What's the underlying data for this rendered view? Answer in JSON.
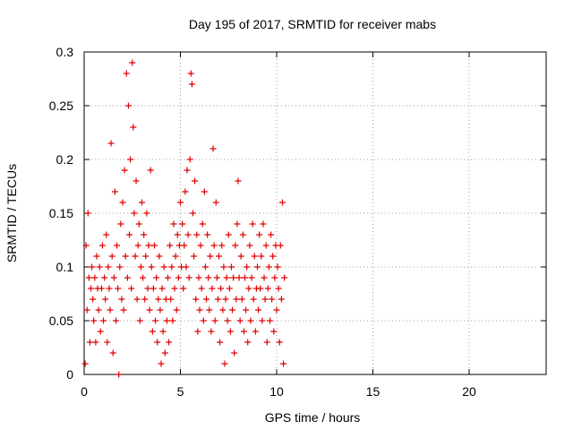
{
  "chart_data": {
    "type": "scatter",
    "title": "Day 195 of 2017, SRMTID for receiver mabs",
    "xlabel": "GPS time / hours",
    "ylabel": "SRMTID / TECUs",
    "xlim": [
      0,
      24
    ],
    "ylim": [
      0,
      0.3
    ],
    "xticks": [
      0,
      5,
      10,
      15,
      20
    ],
    "xtick_labels": [
      "0",
      "5",
      "10",
      "15",
      "20"
    ],
    "yticks": [
      0,
      0.05,
      0.1,
      0.15,
      0.2,
      0.25,
      0.3
    ],
    "ytick_labels": [
      "0",
      "0.05",
      "0.1",
      "0.15",
      "0.2",
      "0.25",
      "0.3"
    ],
    "grid": true,
    "marker": "+",
    "series": [
      {
        "name": "SRMTID",
        "color": "#e00000",
        "points": [
          [
            0.05,
            0.01
          ],
          [
            0.1,
            0.12
          ],
          [
            0.15,
            0.06
          ],
          [
            0.2,
            0.15
          ],
          [
            0.25,
            0.09
          ],
          [
            0.3,
            0.03
          ],
          [
            0.35,
            0.08
          ],
          [
            0.4,
            0.1
          ],
          [
            0.45,
            0.07
          ],
          [
            0.5,
            0.05
          ],
          [
            0.55,
            0.09
          ],
          [
            0.6,
            0.03
          ],
          [
            0.65,
            0.11
          ],
          [
            0.7,
            0.08
          ],
          [
            0.75,
            0.06
          ],
          [
            0.8,
            0.1
          ],
          [
            0.85,
            0.04
          ],
          [
            0.9,
            0.08
          ],
          [
            0.95,
            0.12
          ],
          [
            1.0,
            0.05
          ],
          [
            1.05,
            0.09
          ],
          [
            1.1,
            0.07
          ],
          [
            1.15,
            0.13
          ],
          [
            1.2,
            0.03
          ],
          [
            1.25,
            0.1
          ],
          [
            1.3,
            0.08
          ],
          [
            1.35,
            0.06
          ],
          [
            1.4,
            0.215
          ],
          [
            1.45,
            0.11
          ],
          [
            1.5,
            0.02
          ],
          [
            1.55,
            0.09
          ],
          [
            1.6,
            0.17
          ],
          [
            1.65,
            0.05
          ],
          [
            1.7,
            0.12
          ],
          [
            1.75,
            0.08
          ],
          [
            1.8,
            0.0
          ],
          [
            1.85,
            0.1
          ],
          [
            1.9,
            0.14
          ],
          [
            1.95,
            0.07
          ],
          [
            2.0,
            0.16
          ],
          [
            2.05,
            0.06
          ],
          [
            2.1,
            0.19
          ],
          [
            2.15,
            0.11
          ],
          [
            2.2,
            0.28
          ],
          [
            2.25,
            0.09
          ],
          [
            2.3,
            0.25
          ],
          [
            2.35,
            0.13
          ],
          [
            2.4,
            0.2
          ],
          [
            2.45,
            0.08
          ],
          [
            2.5,
            0.29
          ],
          [
            2.55,
            0.23
          ],
          [
            2.6,
            0.15
          ],
          [
            2.65,
            0.11
          ],
          [
            2.7,
            0.18
          ],
          [
            2.75,
            0.07
          ],
          [
            2.8,
            0.12
          ],
          [
            2.85,
            0.14
          ],
          [
            2.9,
            0.05
          ],
          [
            2.95,
            0.1
          ],
          [
            3.0,
            0.16
          ],
          [
            3.05,
            0.09
          ],
          [
            3.1,
            0.13
          ],
          [
            3.15,
            0.07
          ],
          [
            3.2,
            0.11
          ],
          [
            3.25,
            0.15
          ],
          [
            3.3,
            0.08
          ],
          [
            3.35,
            0.12
          ],
          [
            3.4,
            0.06
          ],
          [
            3.45,
            0.19
          ],
          [
            3.5,
            0.1
          ],
          [
            3.55,
            0.04
          ],
          [
            3.6,
            0.08
          ],
          [
            3.65,
            0.12
          ],
          [
            3.7,
            0.05
          ],
          [
            3.75,
            0.09
          ],
          [
            3.8,
            0.03
          ],
          [
            3.85,
            0.07
          ],
          [
            3.9,
            0.11
          ],
          [
            3.95,
            0.06
          ],
          [
            4.0,
            0.01
          ],
          [
            4.05,
            0.08
          ],
          [
            4.1,
            0.04
          ],
          [
            4.15,
            0.1
          ],
          [
            4.2,
            0.02
          ],
          [
            4.25,
            0.07
          ],
          [
            4.3,
            0.05
          ],
          [
            4.35,
            0.09
          ],
          [
            4.4,
            0.03
          ],
          [
            4.45,
            0.12
          ],
          [
            4.5,
            0.07
          ],
          [
            4.55,
            0.1
          ],
          [
            4.6,
            0.05
          ],
          [
            4.65,
            0.14
          ],
          [
            4.7,
            0.08
          ],
          [
            4.75,
            0.11
          ],
          [
            4.8,
            0.06
          ],
          [
            4.85,
            0.13
          ],
          [
            4.9,
            0.09
          ],
          [
            4.95,
            0.12
          ],
          [
            5.0,
            0.16
          ],
          [
            5.05,
            0.1
          ],
          [
            5.1,
            0.14
          ],
          [
            5.15,
            0.08
          ],
          [
            5.2,
            0.12
          ],
          [
            5.25,
            0.17
          ],
          [
            5.3,
            0.1
          ],
          [
            5.35,
            0.19
          ],
          [
            5.4,
            0.13
          ],
          [
            5.45,
            0.09
          ],
          [
            5.5,
            0.2
          ],
          [
            5.55,
            0.28
          ],
          [
            5.6,
            0.27
          ],
          [
            5.65,
            0.15
          ],
          [
            5.7,
            0.11
          ],
          [
            5.75,
            0.18
          ],
          [
            5.8,
            0.07
          ],
          [
            5.85,
            0.13
          ],
          [
            5.9,
            0.04
          ],
          [
            5.95,
            0.09
          ],
          [
            6.0,
            0.06
          ],
          [
            6.05,
            0.12
          ],
          [
            6.1,
            0.08
          ],
          [
            6.15,
            0.14
          ],
          [
            6.2,
            0.05
          ],
          [
            6.25,
            0.17
          ],
          [
            6.3,
            0.1
          ],
          [
            6.35,
            0.07
          ],
          [
            6.4,
            0.13
          ],
          [
            6.45,
            0.09
          ],
          [
            6.5,
            0.06
          ],
          [
            6.55,
            0.11
          ],
          [
            6.6,
            0.04
          ],
          [
            6.65,
            0.08
          ],
          [
            6.7,
            0.21
          ],
          [
            6.75,
            0.12
          ],
          [
            6.8,
            0.05
          ],
          [
            6.85,
            0.16
          ],
          [
            6.9,
            0.09
          ],
          [
            6.95,
            0.07
          ],
          [
            7.0,
            0.11
          ],
          [
            7.05,
            0.03
          ],
          [
            7.1,
            0.08
          ],
          [
            7.15,
            0.12
          ],
          [
            7.2,
            0.06
          ],
          [
            7.25,
            0.1
          ],
          [
            7.3,
            0.01
          ],
          [
            7.35,
            0.07
          ],
          [
            7.4,
            0.09
          ],
          [
            7.45,
            0.05
          ],
          [
            7.5,
            0.13
          ],
          [
            7.55,
            0.08
          ],
          [
            7.6,
            0.04
          ],
          [
            7.65,
            0.1
          ],
          [
            7.7,
            0.06
          ],
          [
            7.75,
            0.09
          ],
          [
            7.8,
            0.02
          ],
          [
            7.85,
            0.12
          ],
          [
            7.9,
            0.07
          ],
          [
            7.95,
            0.14
          ],
          [
            8.0,
            0.18
          ],
          [
            8.05,
            0.09
          ],
          [
            8.1,
            0.05
          ],
          [
            8.15,
            0.11
          ],
          [
            8.2,
            0.07
          ],
          [
            8.25,
            0.13
          ],
          [
            8.3,
            0.04
          ],
          [
            8.35,
            0.09
          ],
          [
            8.4,
            0.06
          ],
          [
            8.45,
            0.1
          ],
          [
            8.5,
            0.03
          ],
          [
            8.55,
            0.08
          ],
          [
            8.6,
            0.12
          ],
          [
            8.65,
            0.05
          ],
          [
            8.7,
            0.09
          ],
          [
            8.75,
            0.14
          ],
          [
            8.8,
            0.07
          ],
          [
            8.85,
            0.11
          ],
          [
            8.9,
            0.04
          ],
          [
            8.95,
            0.08
          ],
          [
            9.0,
            0.1
          ],
          [
            9.05,
            0.06
          ],
          [
            9.1,
            0.13
          ],
          [
            9.15,
            0.08
          ],
          [
            9.2,
            0.11
          ],
          [
            9.25,
            0.05
          ],
          [
            9.3,
            0.14
          ],
          [
            9.35,
            0.09
          ],
          [
            9.4,
            0.07
          ],
          [
            9.45,
            0.12
          ],
          [
            9.5,
            0.03
          ],
          [
            9.55,
            0.08
          ],
          [
            9.6,
            0.1
          ],
          [
            9.65,
            0.05
          ],
          [
            9.7,
            0.13
          ],
          [
            9.75,
            0.07
          ],
          [
            9.8,
            0.11
          ],
          [
            9.85,
            0.04
          ],
          [
            9.9,
            0.09
          ],
          [
            9.95,
            0.12
          ],
          [
            10.0,
            0.06
          ],
          [
            10.05,
            0.1
          ],
          [
            10.1,
            0.08
          ],
          [
            10.15,
            0.03
          ],
          [
            10.2,
            0.12
          ],
          [
            10.25,
            0.07
          ],
          [
            10.3,
            0.16
          ],
          [
            10.35,
            0.01
          ],
          [
            10.4,
            0.09
          ]
        ]
      }
    ]
  }
}
